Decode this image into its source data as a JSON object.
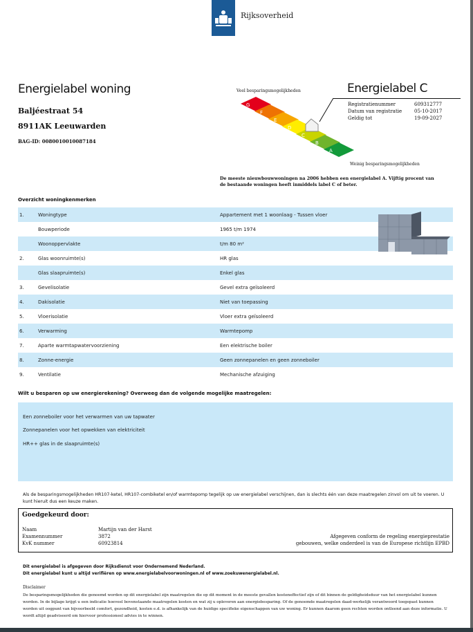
{
  "header": {
    "logo_text": "Rijksoverheid"
  },
  "title": "Energielabel woning",
  "address": {
    "street": "Baljéestraat 54",
    "city": "8911AK Leeuwarden",
    "bag_id": "BAG-ID: 0080010010087184"
  },
  "label": {
    "title": "Energielabel C",
    "scale_top": "Veel besparingsmogelijkheden",
    "scale_bottom": "Weinig besparingsmogelijkheden",
    "classes": [
      "G",
      "F",
      "E",
      "D",
      "C",
      "B",
      "A"
    ],
    "current": "C",
    "colors": [
      "#e3001b",
      "#ee7203",
      "#f7a600",
      "#ffed00",
      "#c9d400",
      "#6fb42c",
      "#139a3a"
    ],
    "reg_rows": [
      {
        "label": "Registratienummer",
        "value": "609312777"
      },
      {
        "label": "Datum van registratie",
        "value": "05-10-2017"
      },
      {
        "label": "Geldig tot",
        "value": "19-09-2027"
      }
    ],
    "note": "De meeste nieuwbouwwoningen na 2006 hebben een energielabel A. Vijftig procent van de bestaande woningen heeft inmiddels label C of beter."
  },
  "overview": {
    "heading": "Overzicht woningkenmerken",
    "rows": [
      {
        "num": "1.",
        "label": "Woningtype",
        "value": "Appartement met 1 woonlaag - Tussen vloer"
      },
      {
        "num": "",
        "label": "Bouwperiode",
        "value": "1965 t/m 1974"
      },
      {
        "num": "",
        "label": "Woonoppervlakte",
        "value": "t/m 80 m²"
      },
      {
        "num": "2.",
        "label": "Glas woonruimte(s)",
        "value": "HR glas"
      },
      {
        "num": "",
        "label": "Glas slaapruimte(s)",
        "value": "Enkel glas"
      },
      {
        "num": "3.",
        "label": "Gevelisolatie",
        "value": "Gevel extra geïsoleerd"
      },
      {
        "num": "4.",
        "label": "Dakisolatie",
        "value": "Niet van toepassing"
      },
      {
        "num": "5.",
        "label": "Vloerisolatie",
        "value": "Vloer extra geïsoleerd"
      },
      {
        "num": "6.",
        "label": "Verwarming",
        "value": "Warmtepomp"
      },
      {
        "num": "7.",
        "label": "Aparte warmtapwatervoorziening",
        "value": "Een elektrische boiler"
      },
      {
        "num": "8.",
        "label": "Zonne-energie",
        "value": "Geen zonnepanelen en geen zonneboiler"
      },
      {
        "num": "9.",
        "label": "Ventilatie",
        "value": "Mechanische afzuiging"
      }
    ]
  },
  "measures": {
    "heading": "Wilt u besparen op uw energierekening? Overweeg dan de volgende mogelijke maatregelen:",
    "items": [
      "Een zonneboiler voor het verwarmen van uw tapwater",
      "Zonnepanelen voor het opwekken van elektriciteit",
      "HR++ glas in de slaapruimte(s)"
    ],
    "note": "Als de besparingsmogelijkheden HR107-ketel, HR107-combiketel en/of warmtepomp tegelijk op uw energielabel verschijnen, dan is slechts één van deze maatregelen zinvol om uit te voeren. U kunt hieruit dus een keuze maken."
  },
  "approval": {
    "heading": "Goedgekeurd door:",
    "rows": [
      {
        "label": "Naam",
        "value": "Martijn van der  Harst"
      },
      {
        "label": "Examennummer",
        "value": "3872"
      },
      {
        "label": "KvK nummer",
        "value": "60923814"
      }
    ],
    "conform_1": "Afgegeven conform de regeling energieprestatie",
    "conform_2": "gebouwen, welke onderdeel is van de Europese richtlijn EPBD"
  },
  "footer": {
    "line1": "Dit energielabel is afgegeven door Rijksdienst voor Ondernemend Nederland.",
    "line2": "Dit energielabel kunt u altijd verifiëren op www.energielabelvoorwoningen.nl of www.zoekuwenergielabel.nl.",
    "disclaimer_title": "Disclaimer",
    "disclaimer": "De besparingsmogelijkheden die genoemd worden op dit energielabel zijn maatregelen die op dit moment in de meeste gevallen kosteneffectief zijn of dit binnen de geldigheidsduur van het energielabel kunnen worden. In de bijlage krijgt u een indicatie hoeveel bovenstaande maatregelen kosten en wat zij u opleveren aan energiebesparing. Of de genoemde maatregelen daad-werkelijk verantwoord toegepast kunnen worden uit oogpunt van bijvoorbeeld comfort, gezondheid, kosten e.d. is afhankelijk van de huidige specifieke eigenschappen van uw woning. Er kunnen daarom geen rechten worden ontleend aan deze informatie. U wordt altijd geadviseerd om hiervoor professioneel advies in te winnen."
  }
}
